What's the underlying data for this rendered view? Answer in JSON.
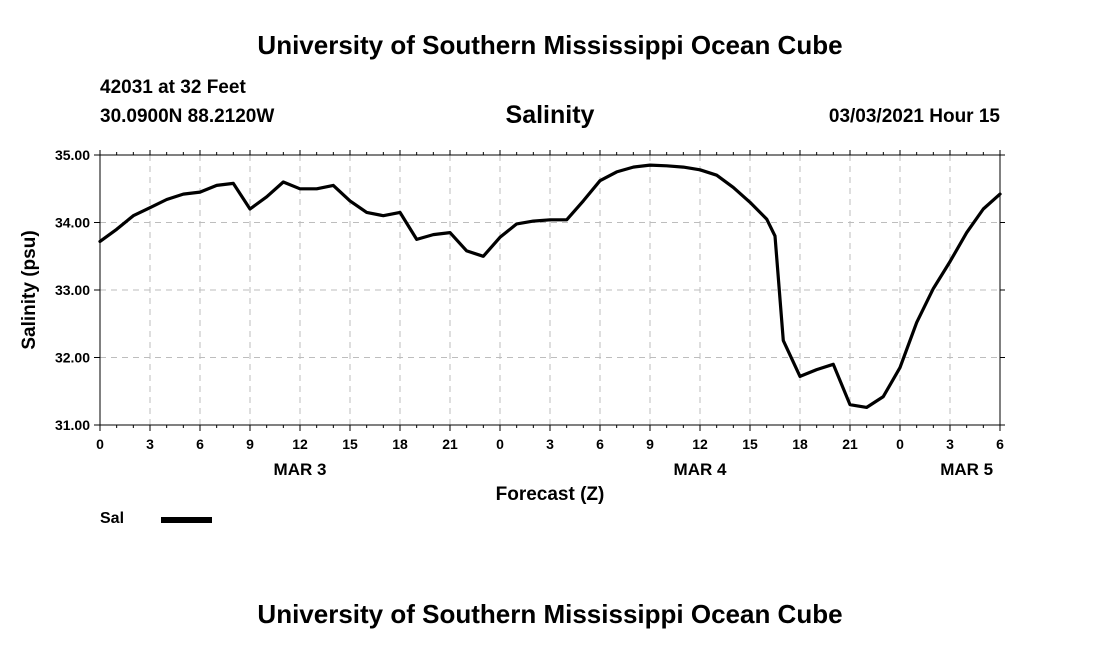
{
  "header": {
    "title": "University of Southern Mississippi Ocean Cube",
    "station": "42031 at 32 Feet",
    "location": "30.0900N 88.2120W",
    "chart_title": "Salinity",
    "date": "03/03/2021 Hour 15"
  },
  "footer": {
    "title": "University of Southern Mississippi Ocean Cube"
  },
  "legend": {
    "label": "Sal",
    "color": "#000000"
  },
  "chart_data": {
    "type": "line",
    "title": "Salinity",
    "xlabel": "Forecast (Z)",
    "ylabel": "Salinity (psu)",
    "ylim": [
      31.0,
      35.0
    ],
    "xlim_hours": [
      0,
      54
    ],
    "y_ticks": [
      "35.00",
      "34.00",
      "33.00",
      "32.00",
      "31.00"
    ],
    "x_tick_labels": [
      "0",
      "3",
      "6",
      "9",
      "12",
      "15",
      "18",
      "21",
      "0",
      "3",
      "6",
      "9",
      "12",
      "15",
      "18",
      "21",
      "0",
      "3",
      "6"
    ],
    "date_labels": [
      {
        "label": "MAR 3",
        "hour": 12
      },
      {
        "label": "MAR 4",
        "hour": 36
      },
      {
        "label": "MAR 5",
        "hour": 52
      }
    ],
    "grid": true,
    "series": [
      {
        "name": "Sal",
        "color": "#000000",
        "x": [
          0,
          1,
          2,
          3,
          4,
          5,
          6,
          7,
          8,
          9,
          10,
          11,
          12,
          13,
          14,
          15,
          16,
          17,
          18,
          19,
          20,
          21,
          22,
          23,
          24,
          25,
          26,
          27,
          28,
          29,
          30,
          31,
          32,
          33,
          34,
          35,
          36,
          37,
          38,
          39,
          40,
          40.5,
          41,
          42,
          43,
          44,
          45,
          46,
          47,
          48,
          49,
          50,
          51,
          52,
          53,
          54
        ],
        "y": [
          33.72,
          33.9,
          34.1,
          34.22,
          34.34,
          34.42,
          34.45,
          34.55,
          34.58,
          34.2,
          34.38,
          34.6,
          34.5,
          34.5,
          34.55,
          34.32,
          34.15,
          34.1,
          34.15,
          33.75,
          33.82,
          33.85,
          33.58,
          33.5,
          33.78,
          33.98,
          34.02,
          34.04,
          34.04,
          34.32,
          34.62,
          34.75,
          34.82,
          34.85,
          34.84,
          34.82,
          34.78,
          34.7,
          34.52,
          34.3,
          34.05,
          33.8,
          32.25,
          31.72,
          31.82,
          31.9,
          31.3,
          31.26,
          31.42,
          31.85,
          32.52,
          33.02,
          33.42,
          33.85,
          34.2,
          34.42
        ]
      }
    ]
  }
}
